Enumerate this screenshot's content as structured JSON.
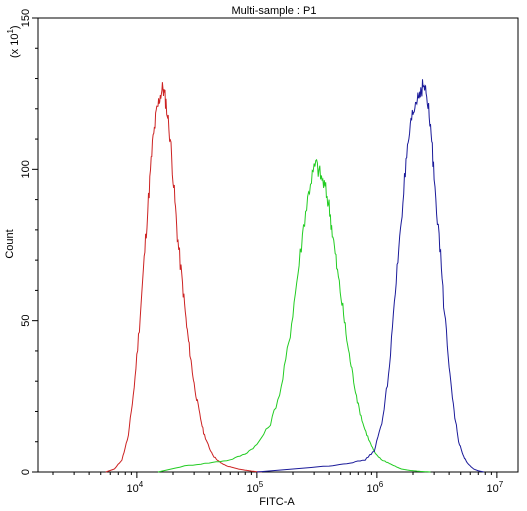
{
  "chart_data": {
    "type": "line",
    "title": "Multi-sample : P1",
    "xlabel": "FITC-A",
    "ylabel": "Count",
    "y_multiplier_label": "(x 10",
    "y_multiplier_exp": "1",
    "x_scale": "log",
    "xlim": [
      1500,
      15000000
    ],
    "ylim": [
      0,
      150
    ],
    "grid": false,
    "legend": "none",
    "x_ticks": [
      {
        "value": 10000,
        "base": "10",
        "exp": "4"
      },
      {
        "value": 100000,
        "base": "10",
        "exp": "5"
      },
      {
        "value": 1000000,
        "base": "10",
        "exp": "6"
      },
      {
        "value": 10000000,
        "base": "10",
        "exp": "7"
      }
    ],
    "y_ticks": [
      {
        "value": 0,
        "label": "0"
      },
      {
        "value": 50,
        "label": "50"
      },
      {
        "value": 100,
        "label": "100"
      },
      {
        "value": 150,
        "label": "150"
      }
    ],
    "series": [
      {
        "color": "#cc2222",
        "x": [
          5500,
          6500,
          7500,
          8500,
          9500,
          10500,
          11500,
          12500,
          13500,
          14500,
          15500,
          16500,
          17500,
          19000,
          20500,
          22000,
          24000,
          26000,
          28000,
          30000,
          33000,
          36000,
          40000,
          44000,
          50000,
          56000,
          63000,
          70000,
          80000,
          90000,
          100000,
          110000
        ],
        "y": [
          0,
          1,
          4,
          12,
          28,
          48,
          70,
          90,
          108,
          118,
          124,
          127,
          122,
          110,
          92,
          76,
          62,
          48,
          38,
          29,
          20,
          13,
          8,
          5,
          3,
          2,
          1.5,
          1,
          0.6,
          0.3,
          0.1,
          0
        ]
      },
      {
        "color": "#22cc22",
        "x": [
          15000,
          25000,
          40000,
          60000,
          80000,
          100000,
          130000,
          160000,
          190000,
          220000,
          250000,
          280000,
          310000,
          340000,
          370000,
          400000,
          430000,
          470000,
          520000,
          570000,
          630000,
          700000,
          780000,
          870000,
          970000,
          1100000,
          1250000,
          1400000,
          1600000,
          1900000,
          2300000,
          2800000
        ],
        "y": [
          0,
          2,
          3,
          4,
          6,
          9,
          16,
          28,
          46,
          66,
          84,
          96,
          102,
          98,
          94,
          88,
          78,
          66,
          54,
          42,
          32,
          22,
          15,
          10,
          6,
          4,
          3,
          2,
          1,
          0.5,
          0.2,
          0
        ]
      },
      {
        "color": "#1a1a99",
        "x": [
          100000,
          200000,
          400000,
          600000,
          800000,
          950000,
          1100000,
          1250000,
          1400000,
          1550000,
          1700000,
          1850000,
          2000000,
          2150000,
          2300000,
          2450000,
          2600000,
          2800000,
          3000000,
          3300000,
          3600000,
          4000000,
          4400000,
          4800000,
          5300000,
          5800000,
          6400000,
          7000000,
          7800000
        ],
        "y": [
          0,
          1,
          2,
          3,
          4,
          7,
          16,
          32,
          55,
          78,
          96,
          110,
          118,
          123,
          126,
          128,
          124,
          114,
          98,
          78,
          56,
          36,
          20,
          10,
          5,
          2.5,
          1,
          0.4,
          0
        ]
      }
    ]
  }
}
